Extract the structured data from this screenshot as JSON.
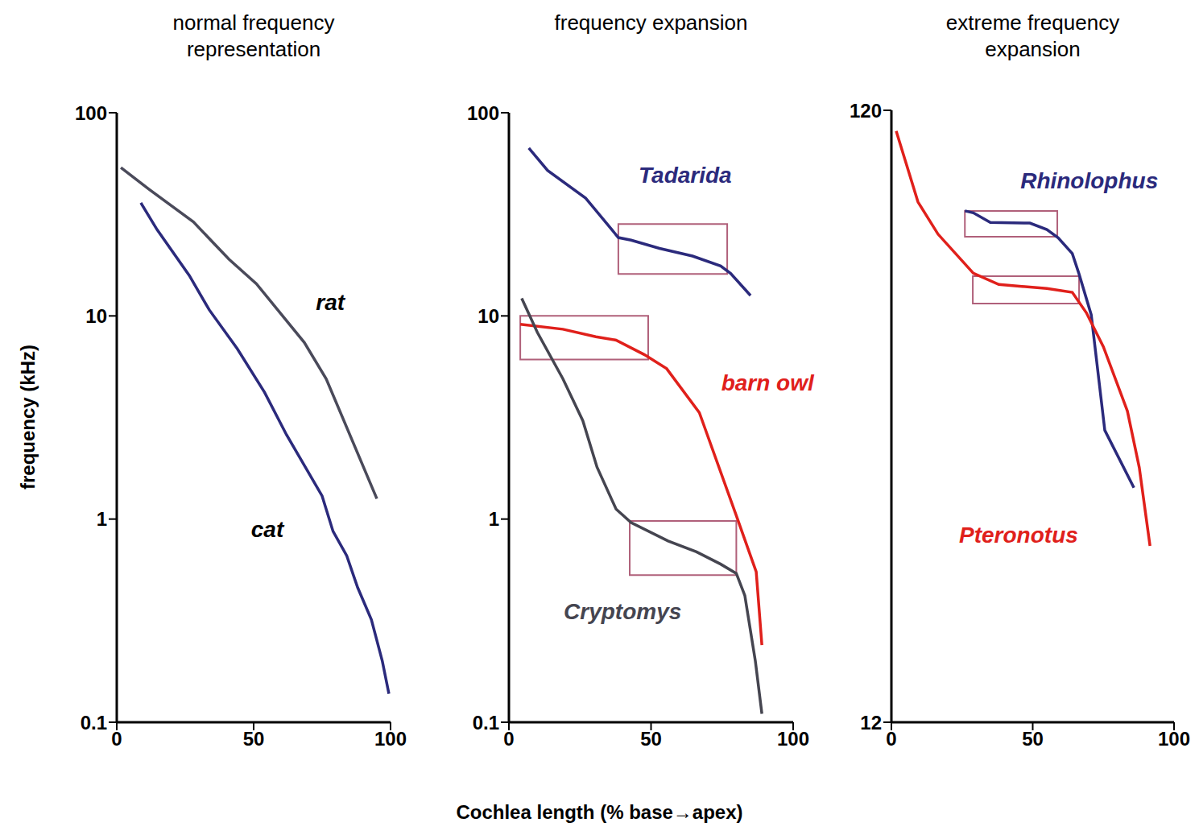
{
  "x_label": "Cochlea length (% base→apex)",
  "y_label": "frequency (kHz)",
  "chart_data": [
    {
      "type": "line",
      "title": "normal frequency representation",
      "log": "y",
      "xlim": [
        0,
        100
      ],
      "xticks": [
        0,
        50,
        100
      ],
      "ylim": [
        0.1,
        100
      ],
      "yticks": [
        0.1,
        1,
        10,
        100
      ],
      "series": [
        {
          "name": "rat",
          "color": "#4a4a5a",
          "x": [
            1.5,
            11.8,
            28,
            41,
            51,
            68.5,
            76.5,
            95
          ],
          "values": [
            53.7,
            42,
            29,
            19,
            14.4,
            7.4,
            4.9,
            1.26
          ]
        },
        {
          "name": "cat",
          "color": "#2b2a7c",
          "x": [
            8.8,
            14.7,
            26.5,
            33.8,
            44,
            54,
            62,
            75,
            79,
            84,
            88,
            93,
            97,
            99.4
          ],
          "values": [
            36,
            26.6,
            15.8,
            10.7,
            6.9,
            4.2,
            2.6,
            1.3,
            0.87,
            0.66,
            0.46,
            0.32,
            0.2,
            0.138
          ]
        }
      ],
      "highlights": []
    },
    {
      "type": "line",
      "title": "frequency expansion",
      "log": "y",
      "xlim": [
        0,
        100
      ],
      "xticks": [
        0,
        50,
        100
      ],
      "ylim": [
        0.1,
        100
      ],
      "yticks": [
        0.1,
        1,
        10,
        100
      ],
      "series": [
        {
          "name": "Tadarida",
          "color": "#2b2a7c",
          "x": [
            7,
            13.6,
            27,
            38.5,
            43,
            53,
            64.6,
            74.5,
            78,
            85
          ],
          "values": [
            67,
            52,
            38,
            24.3,
            23.6,
            21.5,
            19.7,
            17.6,
            16.2,
            12.6
          ]
        },
        {
          "name": "barn owl",
          "color": "#e0201b",
          "x": [
            4,
            19,
            30.6,
            37.7,
            47.6,
            55.5,
            67,
            80,
            87,
            89
          ],
          "values": [
            9.1,
            8.6,
            7.9,
            7.6,
            6.45,
            5.5,
            3.34,
            1.04,
            0.55,
            0.24
          ]
        },
        {
          "name": "Cryptomys",
          "color": "#454550",
          "x": [
            4.5,
            10,
            19,
            26,
            31,
            37.7,
            43,
            56,
            66,
            74.5,
            80,
            83,
            86.7,
            89
          ],
          "values": [
            12.2,
            8.3,
            4.9,
            3.05,
            1.8,
            1.12,
            0.96,
            0.78,
            0.69,
            0.6,
            0.54,
            0.42,
            0.2,
            0.11
          ]
        }
      ],
      "highlights": [
        {
          "x": [
            38.5,
            76.8
          ],
          "y": [
            16.1,
            28.3
          ]
        },
        {
          "x": [
            4,
            49
          ],
          "y": [
            6.1,
            10
          ]
        },
        {
          "x": [
            42.5,
            80
          ],
          "y": [
            0.53,
            0.98
          ]
        }
      ]
    },
    {
      "type": "line",
      "title": "extreme frequency expansion",
      "log": "y",
      "xlim": [
        0,
        100
      ],
      "xticks": [
        0,
        50,
        100
      ],
      "ylim": [
        12,
        120
      ],
      "yticks": [
        12,
        120
      ],
      "series": [
        {
          "name": "Rhinolophus",
          "color": "#2b2a7c",
          "x": [
            26,
            29,
            35,
            49,
            55,
            59,
            64,
            66.4,
            70.7,
            75.5,
            85.8
          ],
          "values": [
            82.2,
            81.6,
            78.7,
            78.5,
            76.6,
            74.3,
            70,
            64.8,
            55.6,
            36,
            29
          ]
        },
        {
          "name": "Pteronotus",
          "color": "#e0201b",
          "x": [
            1.7,
            5,
            9.4,
            16.5,
            29,
            38,
            55,
            64,
            69,
            75,
            83.5,
            87.7,
            91.5
          ],
          "values": [
            111,
            99,
            85,
            75.3,
            65,
            62.3,
            61.4,
            60.5,
            56,
            49.3,
            38.7,
            31.3,
            23.3
          ]
        }
      ],
      "highlights": [
        {
          "x": [
            26,
            58.7
          ],
          "y": [
            74.6,
            82.2
          ]
        },
        {
          "x": [
            28.8,
            66.4
          ],
          "y": [
            58,
            64.3
          ]
        }
      ]
    }
  ]
}
